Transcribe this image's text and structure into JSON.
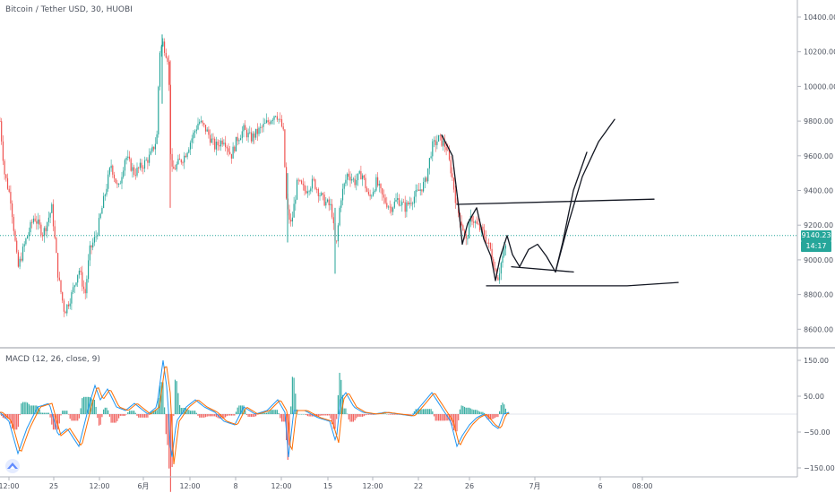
{
  "header": {
    "title": "Bitcoin / Tether USD, 30, HUOBI"
  },
  "price_badge": {
    "value": "9140.23",
    "time": "14:17",
    "color": "#26a69a"
  },
  "macd_label": "MACD (12, 26, close, 9)",
  "colors": {
    "up": "#26a69a",
    "down": "#ef5350",
    "macd": "#2196f3",
    "signal": "#ff6d00",
    "current_line": "#26a69a"
  },
  "chart_data": [
    {
      "type": "candlestick",
      "title": "Bitcoin / Tether USD, 30, HUOBI",
      "x_tick_labels": [
        "12:00",
        "25",
        "12:00",
        "6月",
        "12:00",
        "8",
        "12:00",
        "15",
        "12:00",
        "22",
        "26",
        "7月",
        "6",
        "08:00"
      ],
      "y_tick_labels": [
        "10400.00",
        "10200.00",
        "10000.00",
        "9800.00",
        "9600.00",
        "9400.00",
        "9200.00",
        "9000.00",
        "8800.00",
        "8600.00"
      ],
      "ylim": [
        8500,
        10500
      ],
      "last_price": 9140.23,
      "close_path": [
        [
          0,
          9800
        ],
        [
          5,
          9500
        ],
        [
          12,
          9350
        ],
        [
          20,
          8950
        ],
        [
          28,
          9100
        ],
        [
          38,
          9250
        ],
        [
          48,
          9150
        ],
        [
          58,
          9300
        ],
        [
          65,
          8900
        ],
        [
          72,
          8700
        ],
        [
          80,
          8800
        ],
        [
          88,
          8950
        ],
        [
          95,
          8800
        ],
        [
          100,
          9050
        ],
        [
          108,
          9150
        ],
        [
          116,
          9350
        ],
        [
          124,
          9550
        ],
        [
          132,
          9400
        ],
        [
          140,
          9600
        ],
        [
          150,
          9500
        ],
        [
          160,
          9550
        ],
        [
          168,
          9600
        ],
        [
          175,
          9700
        ],
        [
          178,
          10200
        ],
        [
          182,
          10250
        ],
        [
          188,
          10150
        ],
        [
          191,
          9500
        ],
        [
          198,
          9550
        ],
        [
          206,
          9600
        ],
        [
          214,
          9700
        ],
        [
          222,
          9800
        ],
        [
          230,
          9750
        ],
        [
          240,
          9650
        ],
        [
          250,
          9700
        ],
        [
          258,
          9600
        ],
        [
          265,
          9700
        ],
        [
          272,
          9750
        ],
        [
          280,
          9700
        ],
        [
          290,
          9750
        ],
        [
          300,
          9800
        ],
        [
          308,
          9850
        ],
        [
          316,
          9750
        ],
        [
          320,
          9300
        ],
        [
          325,
          9200
        ],
        [
          332,
          9450
        ],
        [
          340,
          9400
        ],
        [
          350,
          9450
        ],
        [
          360,
          9350
        ],
        [
          370,
          9300
        ],
        [
          375,
          9050
        ],
        [
          380,
          9350
        ],
        [
          388,
          9500
        ],
        [
          396,
          9450
        ],
        [
          404,
          9500
        ],
        [
          412,
          9350
        ],
        [
          420,
          9450
        ],
        [
          428,
          9350
        ],
        [
          436,
          9300
        ],
        [
          444,
          9350
        ],
        [
          452,
          9300
        ],
        [
          460,
          9350
        ],
        [
          468,
          9400
        ],
        [
          475,
          9450
        ],
        [
          482,
          9650
        ],
        [
          490,
          9700
        ],
        [
          498,
          9650
        ],
        [
          504,
          9500
        ],
        [
          510,
          9300
        ],
        [
          516,
          9200
        ],
        [
          520,
          9100
        ],
        [
          526,
          9250
        ],
        [
          532,
          9200
        ],
        [
          540,
          9150
        ],
        [
          548,
          9050
        ],
        [
          552,
          8950
        ],
        [
          556,
          8900
        ],
        [
          560,
          9000
        ],
        [
          566,
          9100
        ]
      ],
      "drawings": [
        {
          "name": "top-channel-line",
          "points": [
            [
              510,
              9320
            ],
            [
              730,
              9350
            ]
          ]
        },
        {
          "name": "bottom-channel-line",
          "points": [
            [
              543,
              8850
            ],
            [
              700,
              8850
            ],
            [
              757,
              8870
            ]
          ]
        },
        {
          "name": "support-line",
          "points": [
            [
              571,
              8960
            ],
            [
              640,
              8930
            ]
          ]
        },
        {
          "name": "projection-path-1",
          "points": [
            [
              493,
              9720
            ],
            [
              505,
              9600
            ],
            [
              512,
              9300
            ],
            [
              516,
              9090
            ],
            [
              522,
              9210
            ],
            [
              532,
              9300
            ],
            [
              540,
              9120
            ],
            [
              548,
              9020
            ],
            [
              553,
              8880
            ],
            [
              558,
              9010
            ],
            [
              566,
              9140
            ],
            [
              572,
              9030
            ],
            [
              580,
              8960
            ],
            [
              590,
              9060
            ],
            [
              600,
              9090
            ],
            [
              610,
              9020
            ],
            [
              620,
              8930
            ],
            [
              628,
              9100
            ],
            [
              640,
              9400
            ],
            [
              655,
              9620
            ]
          ]
        },
        {
          "name": "projection-path-2",
          "points": [
            [
              620,
              8930
            ],
            [
              635,
              9220
            ],
            [
              650,
              9480
            ],
            [
              668,
              9680
            ],
            [
              686,
              9810
            ]
          ]
        }
      ]
    },
    {
      "type": "line",
      "title": "MACD (12, 26, close, 9)",
      "y_tick_labels": [
        "150.00",
        "50.00",
        "−50.00",
        "−150.00"
      ],
      "ylim": [
        -170,
        170
      ],
      "series": [
        {
          "name": "MACD",
          "points": [
            [
              0,
              5
            ],
            [
              10,
              -20
            ],
            [
              20,
              -110
            ],
            [
              30,
              -40
            ],
            [
              42,
              20
            ],
            [
              55,
              30
            ],
            [
              65,
              -60
            ],
            [
              75,
              -40
            ],
            [
              88,
              -90
            ],
            [
              100,
              30
            ],
            [
              106,
              80
            ],
            [
              112,
              40
            ],
            [
              120,
              70
            ],
            [
              130,
              20
            ],
            [
              140,
              10
            ],
            [
              150,
              30
            ],
            [
              165,
              0
            ],
            [
              175,
              20
            ],
            [
              182,
              150
            ],
            [
              187,
              60
            ],
            [
              191,
              -140
            ],
            [
              197,
              -20
            ],
            [
              208,
              20
            ],
            [
              218,
              40
            ],
            [
              228,
              20
            ],
            [
              240,
              5
            ],
            [
              250,
              -20
            ],
            [
              262,
              -30
            ],
            [
              272,
              20
            ],
            [
              285,
              0
            ],
            [
              298,
              10
            ],
            [
              310,
              40
            ],
            [
              318,
              5
            ],
            [
              322,
              -120
            ],
            [
              328,
              10
            ],
            [
              340,
              10
            ],
            [
              355,
              -10
            ],
            [
              368,
              -20
            ],
            [
              375,
              -80
            ],
            [
              380,
              40
            ],
            [
              386,
              60
            ],
            [
              395,
              20
            ],
            [
              405,
              5
            ],
            [
              418,
              0
            ],
            [
              430,
              5
            ],
            [
              445,
              0
            ],
            [
              460,
              -5
            ],
            [
              472,
              30
            ],
            [
              482,
              60
            ],
            [
              495,
              10
            ],
            [
              503,
              -20
            ],
            [
              510,
              -90
            ],
            [
              516,
              -60
            ],
            [
              524,
              -30
            ],
            [
              532,
              -10
            ],
            [
              540,
              0
            ],
            [
              550,
              -30
            ],
            [
              556,
              -40
            ],
            [
              562,
              0
            ],
            [
              568,
              5
            ]
          ]
        }
      ]
    }
  ]
}
